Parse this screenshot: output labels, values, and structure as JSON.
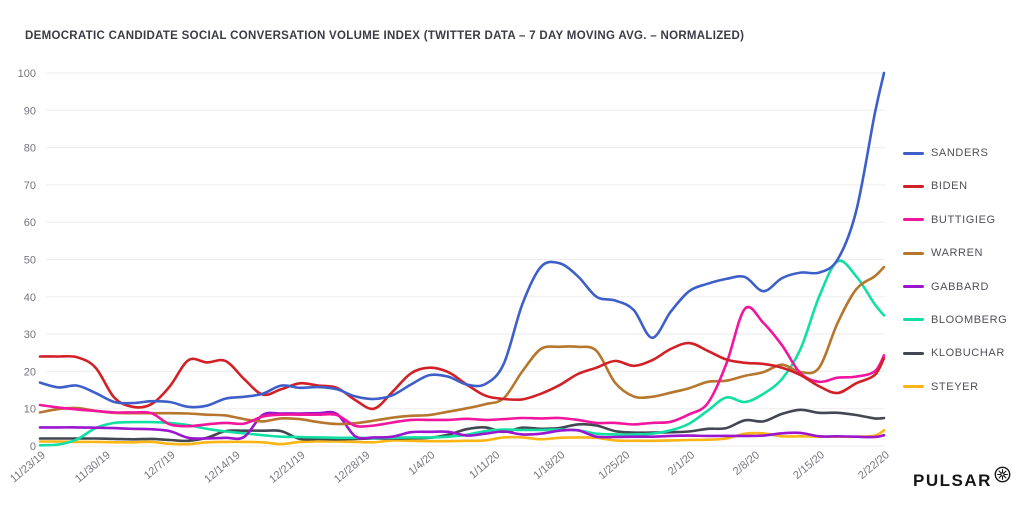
{
  "title": "DEMOCRATIC CANDIDATE SOCIAL CONVERSATION VOLUME INDEX (TWITTER DATA – 7 DAY MOVING AVG. – NORMALIZED)",
  "logo": {
    "text": "PULSAR",
    "icon": "starburst-in-circle"
  },
  "chart_data": {
    "type": "line",
    "title": "DEMOCRATIC CANDIDATE SOCIAL CONVERSATION VOLUME INDEX (TWITTER DATA – 7 DAY MOVING AVG. – NORMALIZED)",
    "xlabel": "",
    "ylabel": "",
    "ylim": [
      0,
      100
    ],
    "y_ticks": [
      0,
      10,
      20,
      30,
      40,
      50,
      60,
      70,
      80,
      90,
      100
    ],
    "grid": "horizontal",
    "legend_position": "right",
    "x_unit": "days since 11/23/2019",
    "x_tick_days": [
      0,
      7,
      14,
      21,
      28,
      35,
      42,
      49,
      56,
      63,
      70,
      77,
      84,
      91
    ],
    "x_tick_labels": [
      "11/23/19",
      "11/30/19",
      "12/7/19",
      "12/14/19",
      "12/21/19",
      "12/28/19",
      "1/4/20",
      "1/11/20",
      "1/18/20",
      "1/25/20",
      "2/1/20",
      "2/8/20",
      "2/15/20",
      "2/22/20"
    ],
    "x": [
      0,
      2,
      4,
      6,
      8,
      10,
      12,
      14,
      16,
      18,
      20,
      22,
      24,
      26,
      28,
      30,
      32,
      34,
      36,
      38,
      40,
      42,
      44,
      46,
      48,
      50,
      52,
      54,
      56,
      58,
      60,
      62,
      64,
      66,
      68,
      70,
      72,
      74,
      76,
      78,
      80,
      82,
      84,
      86,
      88,
      90,
      91
    ],
    "series": [
      {
        "name": "SANDERS",
        "color": "#3E5FC9",
        "values": [
          17,
          15.7,
          16.2,
          14.2,
          11.8,
          11.5,
          12,
          11.8,
          10.5,
          10.8,
          12.7,
          13.2,
          14,
          16.2,
          15.6,
          15.8,
          15.2,
          13.3,
          12.6,
          13.6,
          16.5,
          19,
          18.6,
          16.5,
          16.6,
          22,
          38,
          48,
          49,
          45.5,
          40,
          39,
          36.5,
          29,
          36,
          41.5,
          43.5,
          44.8,
          45.3,
          41.5,
          45,
          46.5,
          46.5,
          50,
          63,
          89,
          100
        ]
      },
      {
        "name": "BIDEN",
        "color": "#D22027",
        "values": [
          24,
          24,
          23.8,
          21,
          13,
          10.5,
          11.2,
          16,
          23,
          22.4,
          22.8,
          18,
          13.8,
          15.2,
          16.8,
          16.2,
          15.6,
          12.3,
          10,
          14.5,
          19.5,
          21,
          19.8,
          16.5,
          13.5,
          12.6,
          12.5,
          14,
          16.3,
          19.3,
          21,
          22.8,
          21.5,
          23,
          26,
          27.6,
          25.5,
          23.2,
          22.3,
          22,
          21,
          19,
          16,
          14.2,
          16.8,
          19,
          23.5
        ]
      },
      {
        "name": "BUTTIGIEG",
        "color": "#F2169F",
        "values": [
          11,
          10.3,
          9.8,
          9.4,
          9,
          9,
          8.8,
          5.8,
          5.3,
          5.8,
          6.2,
          6,
          7.9,
          8.4,
          8.4,
          8.4,
          8.3,
          5.4,
          5.5,
          6.3,
          7,
          7,
          7,
          7.3,
          7,
          7.2,
          7.5,
          7.4,
          7.5,
          7,
          6.2,
          6.2,
          5.8,
          6.2,
          6.5,
          8.5,
          11.5,
          22,
          36.8,
          33,
          27,
          19.5,
          17.2,
          18.3,
          18.6,
          20,
          24.3
        ]
      },
      {
        "name": "WARREN",
        "color": "#B6762E",
        "values": [
          9,
          9.9,
          10.2,
          9.4,
          8.9,
          8.8,
          8.8,
          8.8,
          8.7,
          8.4,
          8.2,
          7.2,
          6.6,
          7.4,
          7.2,
          6.4,
          5.9,
          6.1,
          6.8,
          7.6,
          8.1,
          8.3,
          9.2,
          10.1,
          11.2,
          12.8,
          20,
          26,
          26.6,
          26.6,
          25.5,
          17,
          13.3,
          13.2,
          14.3,
          15.5,
          17.2,
          17.5,
          18.8,
          19.8,
          21.8,
          19.8,
          21,
          33,
          42,
          45.5,
          48
        ]
      },
      {
        "name": "GABBARD",
        "color": "#9B16CE",
        "values": [
          5,
          5,
          5,
          4.9,
          4.8,
          4.6,
          4.5,
          4,
          2.2,
          2,
          2.2,
          2.4,
          8.3,
          8.7,
          8.7,
          8.8,
          8.6,
          2.6,
          2.3,
          2.5,
          3.7,
          3.8,
          3.8,
          2.8,
          3.3,
          3.9,
          3.1,
          3.3,
          4.1,
          4.2,
          2.5,
          2.4,
          2.5,
          2.5,
          2.7,
          2.8,
          2.7,
          2.7,
          2.7,
          2.8,
          3.4,
          3.5,
          2.6,
          2.6,
          2.5,
          2.4,
          2.9
        ]
      },
      {
        "name": "BLOOMBERG",
        "color": "#12DFA3",
        "values": [
          0.2,
          0.4,
          1.8,
          4.8,
          6.2,
          6.4,
          6.4,
          6.2,
          5.6,
          4.6,
          3.9,
          3.4,
          2.9,
          2.5,
          2.4,
          2.3,
          2.2,
          2.2,
          2.1,
          2.2,
          2.3,
          2.3,
          2.5,
          3,
          4,
          4.4,
          4.3,
          4.3,
          4.4,
          4.2,
          3.3,
          3.1,
          3.1,
          3.3,
          4.2,
          6,
          9.5,
          13,
          11.8,
          14,
          18,
          26,
          40,
          49.5,
          45.5,
          38,
          35
        ]
      },
      {
        "name": "KLOBUCHAR",
        "color": "#434751",
        "values": [
          2,
          2,
          2,
          2,
          1.9,
          1.8,
          1.9,
          1.6,
          1.4,
          2.2,
          4,
          4.1,
          4.1,
          4,
          1.9,
          1.9,
          1.8,
          1.9,
          2,
          2,
          2.1,
          2.2,
          3,
          4.5,
          5,
          3.8,
          4.9,
          4.6,
          4.8,
          5.8,
          5.5,
          4,
          3.6,
          3.6,
          3.7,
          3.9,
          4.6,
          4.8,
          6.9,
          6.6,
          8.6,
          9.7,
          8.9,
          8.9,
          8.3,
          7.4,
          7.5
        ]
      },
      {
        "name": "STEYER",
        "color": "#FBB616",
        "values": [
          1.2,
          1.2,
          1.1,
          1.1,
          1,
          1,
          1.1,
          0.6,
          0.5,
          1,
          1.1,
          1.1,
          1,
          0.5,
          1.1,
          1.2,
          1.2,
          1.1,
          1,
          1.5,
          1.4,
          1.3,
          1.3,
          1.4,
          1.5,
          2.3,
          2.3,
          1.8,
          2.2,
          2.3,
          2.2,
          1.5,
          1.4,
          1.4,
          1.5,
          1.6,
          1.7,
          2,
          3.3,
          3.4,
          2.6,
          2.6,
          2.5,
          2.5,
          2.5,
          2.8,
          4.2
        ]
      }
    ]
  },
  "style": {
    "grid_color": "#ededee",
    "axis_label_color": "#75757e",
    "title_color": "#3b3b46"
  }
}
